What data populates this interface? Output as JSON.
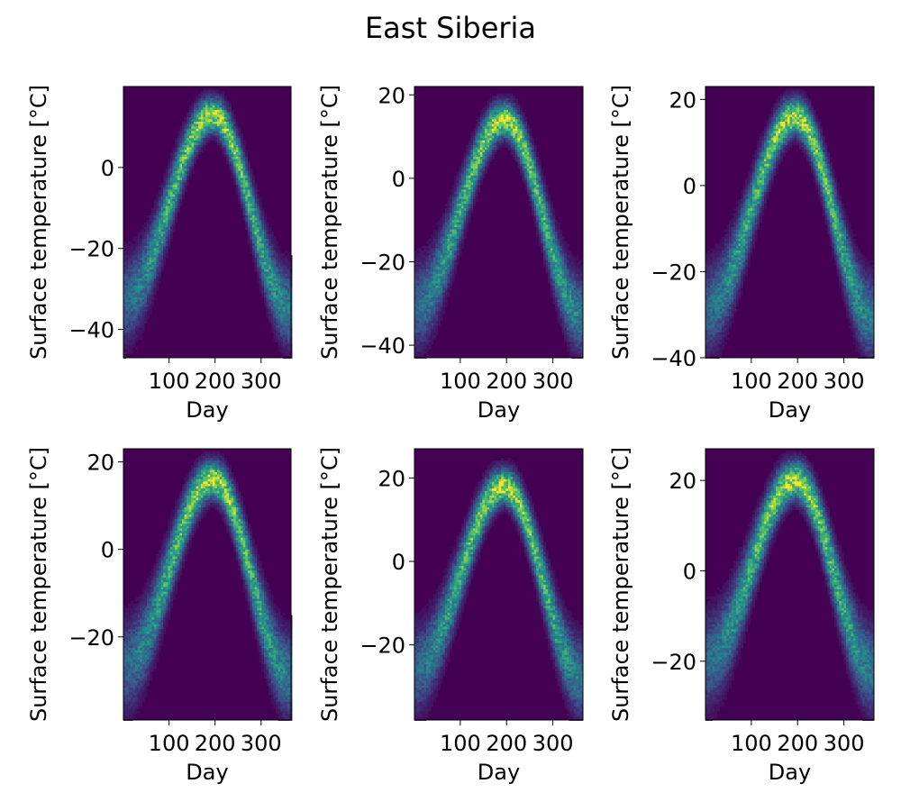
{
  "figure": {
    "title": "East Siberia",
    "colormap": [
      "#440154",
      "#3b528b",
      "#21918c",
      "#5ec962",
      "#fde725"
    ]
  },
  "chart_data": [
    {
      "type": "heatmap",
      "title": "",
      "xlabel": "Day",
      "ylabel": "Surface temperature [°C]",
      "xlim": [
        1,
        365
      ],
      "ylim": [
        -47,
        20
      ],
      "xticks": [
        100,
        200,
        300
      ],
      "yticks": [
        -40,
        -20,
        0
      ],
      "curve": {
        "peak_day": 195,
        "t_min": -33,
        "t_max": 13,
        "mid_day": 112,
        "mid_temp": -3
      }
    },
    {
      "type": "heatmap",
      "title": "",
      "xlabel": "Day",
      "ylabel": "Surface temperature [°C]",
      "xlim": [
        1,
        365
      ],
      "ylim": [
        -43,
        22
      ],
      "xticks": [
        100,
        200,
        300
      ],
      "yticks": [
        -40,
        -20,
        0,
        20
      ],
      "curve": {
        "peak_day": 195,
        "t_min": -31,
        "t_max": 14,
        "mid_day": 112,
        "mid_temp": -3
      }
    },
    {
      "type": "heatmap",
      "title": "",
      "xlabel": "Day",
      "ylabel": "Surface temperature [°C]",
      "xlim": [
        1,
        365
      ],
      "ylim": [
        -40,
        23
      ],
      "xticks": [
        100,
        200,
        300
      ],
      "yticks": [
        -40,
        -20,
        0,
        20
      ],
      "curve": {
        "peak_day": 195,
        "t_min": -29,
        "t_max": 16,
        "mid_day": 112,
        "mid_temp": 0
      }
    },
    {
      "type": "heatmap",
      "title": "",
      "xlabel": "Day",
      "ylabel": "Surface temperature [°C]",
      "xlim": [
        1,
        365
      ],
      "ylim": [
        -39,
        23
      ],
      "xticks": [
        100,
        200,
        300
      ],
      "yticks": [
        -20,
        0,
        20
      ],
      "curve": {
        "peak_day": 195,
        "t_min": -27,
        "t_max": 16,
        "mid_day": 112,
        "mid_temp": -1
      }
    },
    {
      "type": "heatmap",
      "title": "",
      "xlabel": "Day",
      "ylabel": "Surface temperature [°C]",
      "xlim": [
        1,
        365
      ],
      "ylim": [
        -38,
        27
      ],
      "xticks": [
        100,
        200,
        300
      ],
      "yticks": [
        -20,
        0,
        20
      ],
      "curve": {
        "peak_day": 195,
        "t_min": -26,
        "t_max": 18,
        "mid_day": 112,
        "mid_temp": -1
      }
    },
    {
      "type": "heatmap",
      "title": "",
      "xlabel": "Day",
      "ylabel": "Surface temperature [°C]",
      "xlim": [
        1,
        365
      ],
      "ylim": [
        -33,
        27
      ],
      "xticks": [
        100,
        200,
        300
      ],
      "yticks": [
        -20,
        0,
        20
      ],
      "curve": {
        "peak_day": 195,
        "t_min": -20,
        "t_max": 20,
        "mid_day": 112,
        "mid_temp": 0
      }
    }
  ]
}
